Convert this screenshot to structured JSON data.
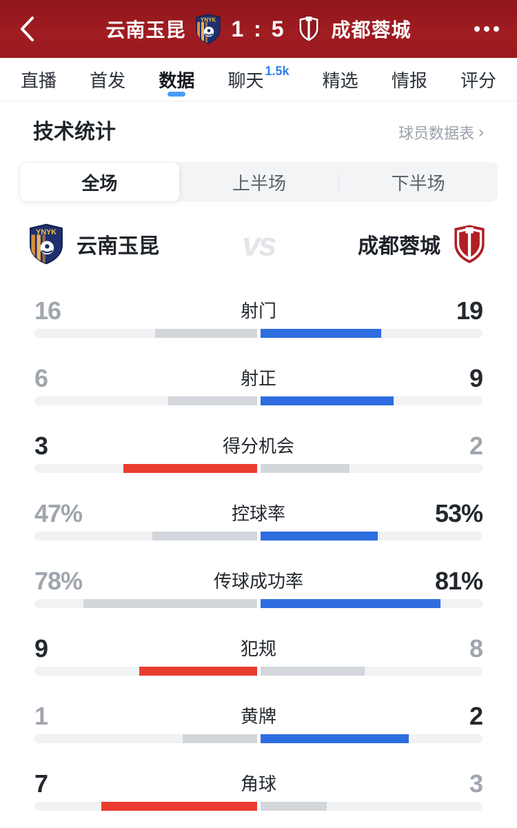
{
  "header": {
    "home_team": "云南玉昆",
    "score": "1 : 5",
    "away_team": "成都蓉城"
  },
  "tabs": [
    {
      "name": "live",
      "label": "直播",
      "selected": false
    },
    {
      "name": "lineup",
      "label": "首发",
      "selected": false
    },
    {
      "name": "data",
      "label": "数据",
      "selected": true
    },
    {
      "name": "chat",
      "label": "聊天",
      "selected": false,
      "badge": "1.5k"
    },
    {
      "name": "featured",
      "label": "精选",
      "selected": false
    },
    {
      "name": "intel",
      "label": "情报",
      "selected": false
    },
    {
      "name": "rating",
      "label": "评分",
      "selected": false
    }
  ],
  "stats_section": {
    "title": "技术统计",
    "link_label": "球员数据表",
    "link_chevron": "›"
  },
  "segments": [
    {
      "name": "full",
      "label": "全场",
      "selected": true
    },
    {
      "name": "first-half",
      "label": "上半场",
      "selected": false
    },
    {
      "name": "second-half",
      "label": "下半场",
      "selected": false
    }
  ],
  "matchup": {
    "home": "云南玉昆",
    "away": "成都蓉城",
    "vs_label": "vs"
  },
  "chart_data": {
    "type": "bar",
    "layout": "head-to-head bars extending outward from center; winner side colored (home=red, away=blue), loser gray; count stats scaled by share of total, percent stats scaled by percent of half-track",
    "home_team": "云南玉昆",
    "away_team": "成都蓉城",
    "stats": [
      {
        "key": "shots",
        "label": "射门",
        "home": 16,
        "away": 19,
        "home_display": "16",
        "away_display": "19",
        "unit": "count"
      },
      {
        "key": "shots-on-target",
        "label": "射正",
        "home": 6,
        "away": 9,
        "home_display": "6",
        "away_display": "9",
        "unit": "count"
      },
      {
        "key": "big-chances",
        "label": "得分机会",
        "home": 3,
        "away": 2,
        "home_display": "3",
        "away_display": "2",
        "unit": "count"
      },
      {
        "key": "possession",
        "label": "控球率",
        "home": 47,
        "away": 53,
        "home_display": "47%",
        "away_display": "53%",
        "unit": "percent"
      },
      {
        "key": "pass-accuracy",
        "label": "传球成功率",
        "home": 78,
        "away": 81,
        "home_display": "78%",
        "away_display": "81%",
        "unit": "percent"
      },
      {
        "key": "fouls",
        "label": "犯规",
        "home": 9,
        "away": 8,
        "home_display": "9",
        "away_display": "8",
        "unit": "count"
      },
      {
        "key": "yellow-cards",
        "label": "黄牌",
        "home": 1,
        "away": 2,
        "home_display": "1",
        "away_display": "2",
        "unit": "count"
      },
      {
        "key": "corners",
        "label": "角球",
        "home": 7,
        "away": 3,
        "home_display": "7",
        "away_display": "3",
        "unit": "count"
      }
    ]
  },
  "colors": {
    "header_red": "#a01d22",
    "accent_blue": "#2e6ddf",
    "home_red": "#ea3c30",
    "loser_gray": "#d3d6db",
    "track_gray": "#f1f2f4",
    "tab_underline": "#4b9bf8",
    "badge_blue": "#2d7ff0"
  }
}
